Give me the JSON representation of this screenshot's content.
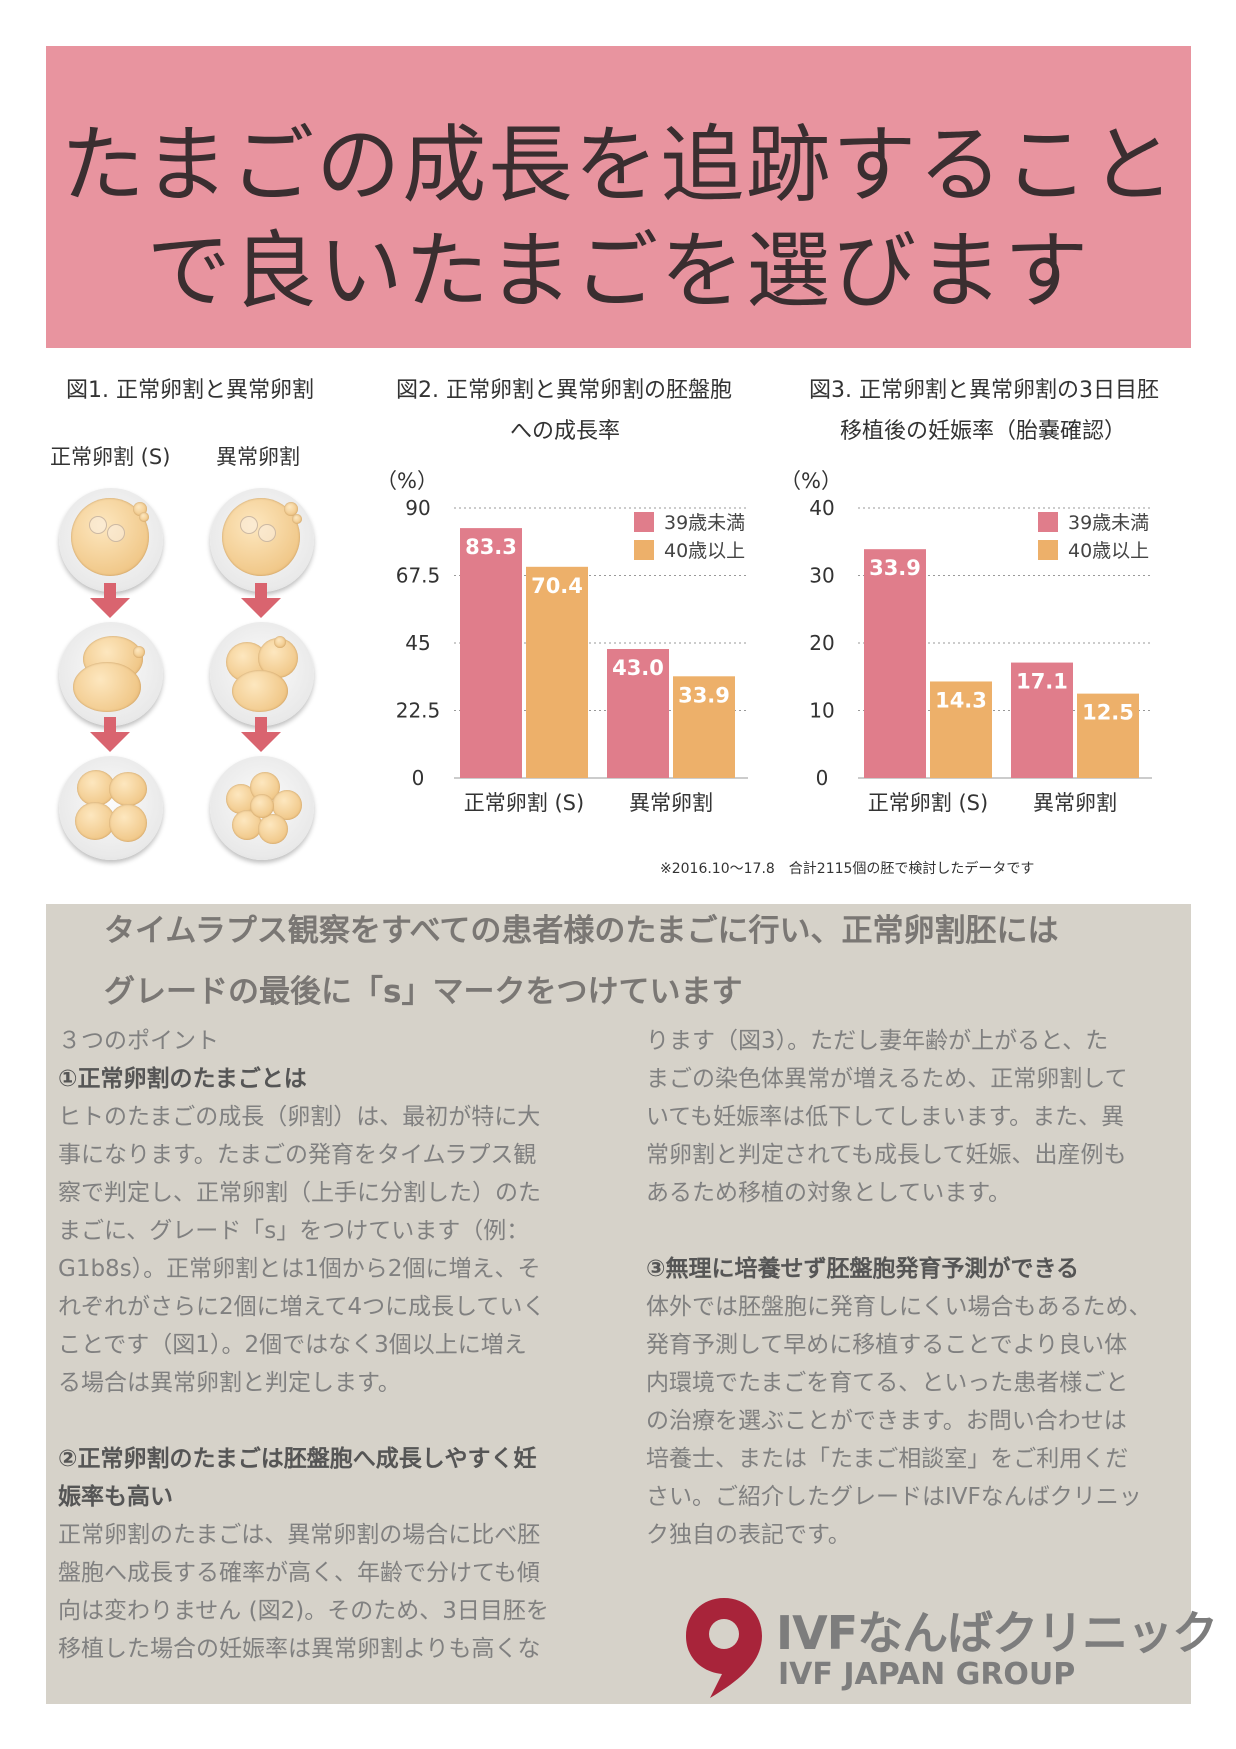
{
  "banner": {
    "line1": "たまごの成長を追跡すること",
    "line2": "で良いたまごを選びます",
    "color": "#e8949f"
  },
  "fig1": {
    "title": "図1. 正常卵割と異常卵割",
    "label_normal": "正常卵割 (S)",
    "label_abnormal": "異常卵割"
  },
  "fig2": {
    "title_line1": "図2. 正常卵割と異常卵割の胚盤胞",
    "title_line2": "への成長率"
  },
  "fig3": {
    "title_line1": "図3. 正常卵割と異常卵割の3日目胚",
    "title_line2": "移植後の妊娠率（胎嚢確認）"
  },
  "chart_data": [
    {
      "type": "bar",
      "unit_label": "（%）",
      "categories": [
        "正常卵割 (S)",
        "異常卵割"
      ],
      "series": [
        {
          "name": "39歳未満",
          "values": [
            83.3,
            43.0
          ],
          "labels": [
            "83.3",
            "43.0"
          ],
          "color": "#e07d8b"
        },
        {
          "name": "40歳以上",
          "values": [
            70.4,
            33.9
          ],
          "labels": [
            "70.4",
            "33.9"
          ],
          "color": "#edb06a"
        }
      ],
      "ylim": [
        0,
        90
      ],
      "yticks": [
        "0",
        "22.5",
        "45",
        "67.5",
        "90"
      ],
      "grid": "dotted",
      "legend": "top-right"
    },
    {
      "type": "bar",
      "unit_label": "（%）",
      "categories": [
        "正常卵割 (S)",
        "異常卵割"
      ],
      "series": [
        {
          "name": "39歳未満",
          "values": [
            33.9,
            17.1
          ],
          "labels": [
            "33.9",
            "17.1"
          ],
          "color": "#e07d8b"
        },
        {
          "name": "40歳以上",
          "values": [
            14.3,
            12.5
          ],
          "labels": [
            "14.3",
            "12.5"
          ],
          "color": "#edb06a"
        }
      ],
      "ylim": [
        0,
        40
      ],
      "yticks": [
        "0",
        "10",
        "20",
        "30",
        "40"
      ],
      "grid": "dotted",
      "legend": "top-right"
    }
  ],
  "note": "※2016.10〜17.8　合計2115個の胚で検討したデータです",
  "headline": {
    "line1": "タイムラプス観察をすべての患者様のたまごに行い、正常卵割胚には",
    "line2": "グレードの最後に「s」マークをつけています"
  },
  "left_column": [
    {
      "text": "３つのポイント",
      "bold": false
    },
    {
      "text": "①正常卵割のたまごとは",
      "bold": true
    },
    {
      "text": "ヒトのたまごの成長（卵割）は、最初が特に大",
      "bold": false
    },
    {
      "text": "事になります。たまごの発育をタイムラプス観",
      "bold": false
    },
    {
      "text": "察で判定し、正常卵割（上手に分割した）のた",
      "bold": false
    },
    {
      "text": "まごに、グレード「s」をつけています（例：",
      "bold": false
    },
    {
      "text": "G1b8s）。正常卵割とは1個から2個に増え、そ",
      "bold": false
    },
    {
      "text": "れぞれがさらに2個に増えて4つに成長していく",
      "bold": false
    },
    {
      "text": "ことです（図1）。2個ではなく3個以上に増え",
      "bold": false
    },
    {
      "text": "る場合は異常卵割と判定します。",
      "bold": false
    },
    {
      "text": "",
      "bold": false
    },
    {
      "text": "②正常卵割のたまごは胚盤胞へ成長しやすく妊",
      "bold": true
    },
    {
      "text": "娠率も高い",
      "bold": true
    },
    {
      "text": "正常卵割のたまごは、異常卵割の場合に比べ胚",
      "bold": false
    },
    {
      "text": "盤胞へ成長する確率が高く、年齢で分けても傾",
      "bold": false
    },
    {
      "text": "向は変わりません (図2)。そのため、3日目胚を",
      "bold": false
    },
    {
      "text": "移植した場合の妊娠率は異常卵割よりも高くな",
      "bold": false
    }
  ],
  "right_column": [
    {
      "text": "ります（図3）。ただし妻年齢が上がると、た",
      "bold": false
    },
    {
      "text": "まごの染色体異常が増えるため、正常卵割して",
      "bold": false
    },
    {
      "text": "いても妊娠率は低下してしまいます。また、異",
      "bold": false
    },
    {
      "text": "常卵割と判定されても成長して妊娠、出産例も",
      "bold": false
    },
    {
      "text": "あるため移植の対象としています。",
      "bold": false
    },
    {
      "text": "",
      "bold": false
    },
    {
      "text": "③無理に培養せず胚盤胞発育予測ができる",
      "bold": true
    },
    {
      "text": "体外では胚盤胞に発育しにくい場合もあるため、",
      "bold": false
    },
    {
      "text": "発育予測して早めに移植することでより良い体",
      "bold": false
    },
    {
      "text": "内環境でたまごを育てる、といった患者様ごと",
      "bold": false
    },
    {
      "text": "の治療を選ぶことができます。お問い合わせは",
      "bold": false
    },
    {
      "text": "培養士、または「たまご相談室」をご利用くだ",
      "bold": false
    },
    {
      "text": "さい。ご紹介したグレードはIVFなんばクリニッ",
      "bold": false
    },
    {
      "text": "ク独自の表記です。",
      "bold": false
    }
  ],
  "logo": {
    "name": "IVFなんばクリニック",
    "group": "IVF JAPAN GROUP",
    "color": "#a8243a"
  }
}
